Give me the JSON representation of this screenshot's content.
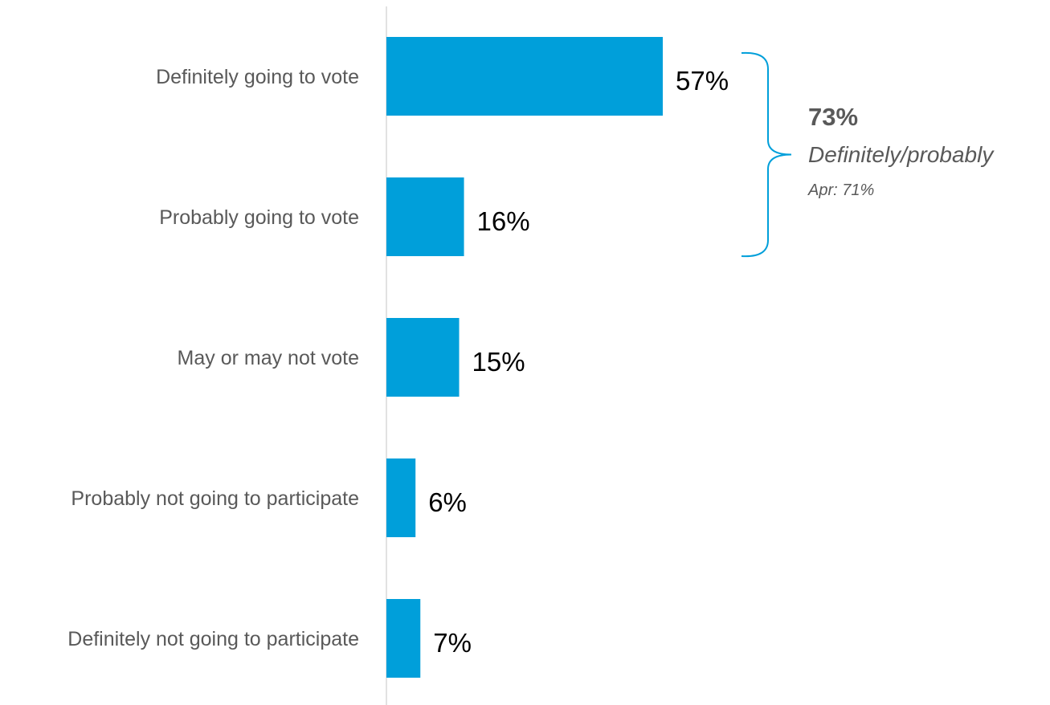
{
  "chart_data": {
    "type": "bar",
    "orientation": "horizontal",
    "categories": [
      "Definitely going to vote",
      "Probably going to vote",
      "May or may not vote",
      "Probably not going to participate",
      "Definitely not going to participate"
    ],
    "values": [
      57,
      16,
      15,
      6,
      7
    ],
    "value_labels": [
      "57%",
      "16%",
      "15%",
      "6%",
      "7%"
    ],
    "bar_color": "#009FDA",
    "annotation": {
      "value": "73%",
      "label": "Definitely/probably",
      "sub": "Apr: 71%",
      "spans_categories": [
        0,
        1
      ],
      "bracket_color": "#009FDA"
    },
    "grid": false,
    "legend": "none"
  }
}
